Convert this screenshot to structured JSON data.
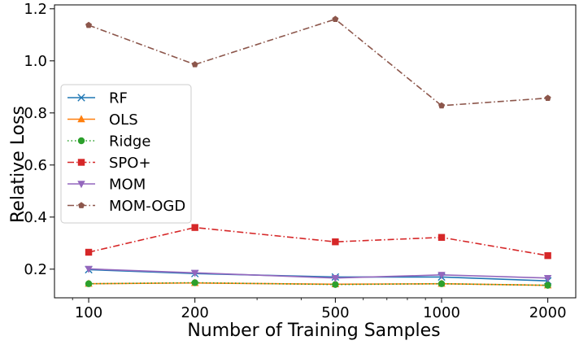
{
  "chart_data": {
    "type": "line",
    "xscale": "log",
    "x": [
      100,
      200,
      500,
      1000,
      2000
    ],
    "xticks": [
      "100",
      "200",
      "500",
      "1000",
      "2000"
    ],
    "xlabel": "Number of Training Samples",
    "ylabel": "Relative Loss",
    "ylim": [
      0.09,
      1.215
    ],
    "yticks": [
      "0.2",
      "0.4",
      "0.6",
      "0.8",
      "1.0",
      "1.2"
    ],
    "ytick_values": [
      0.2,
      0.4,
      0.6,
      0.8,
      1.0,
      1.2
    ],
    "grid": false,
    "legend_position": "center-left",
    "series": [
      {
        "name": "RF",
        "color": "#1f77b4",
        "marker": "x",
        "dash": "solid",
        "values": [
          0.198,
          0.183,
          0.17,
          0.17,
          0.155
        ]
      },
      {
        "name": "OLS",
        "color": "#ff7f0e",
        "marker": "triangle-up",
        "dash": "solid",
        "values": [
          0.144,
          0.147,
          0.142,
          0.144,
          0.138
        ]
      },
      {
        "name": "Ridge",
        "color": "#2ca02c",
        "marker": "circle",
        "dash": "dotted",
        "values": [
          0.144,
          0.148,
          0.141,
          0.144,
          0.138
        ]
      },
      {
        "name": "SPO+",
        "color": "#d62728",
        "marker": "square",
        "dash": "dashdot",
        "values": [
          0.265,
          0.36,
          0.305,
          0.322,
          0.252
        ]
      },
      {
        "name": "MOM",
        "color": "#9467bd",
        "marker": "triangle-down",
        "dash": "solid",
        "values": [
          0.201,
          0.186,
          0.166,
          0.178,
          0.166
        ]
      },
      {
        "name": "MOM-OGD",
        "color": "#8c564b",
        "marker": "pentagon",
        "dash": "dashdot",
        "values": [
          1.137,
          0.986,
          1.16,
          0.828,
          0.857
        ]
      }
    ]
  }
}
